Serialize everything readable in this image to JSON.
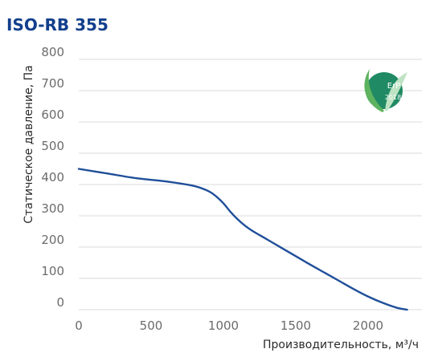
{
  "chart_data": {
    "type": "line",
    "title": "ISO-RB 355",
    "xlabel": "Производительность, м³/ч",
    "ylabel": "Статическое давление, Па",
    "xlim": [
      0,
      2300
    ],
    "ylim": [
      0,
      800
    ],
    "x_ticks": [
      "0",
      "500",
      "1000",
      "1500",
      "2000"
    ],
    "y_ticks": [
      "0",
      "100",
      "200",
      "300",
      "400",
      "500",
      "600",
      "700",
      "800"
    ],
    "grid": true,
    "series": [
      {
        "color": "#1f4e99",
        "x": [
          0,
          200,
          400,
          600,
          800,
          900,
          950,
          1000,
          1050,
          1100,
          1150,
          1200,
          1300,
          1400,
          1500,
          1600,
          1700,
          1800,
          1900,
          2000,
          2100,
          2200,
          2270
        ],
        "y": [
          450,
          435,
          420,
          410,
          395,
          378,
          362,
          340,
          312,
          288,
          268,
          252,
          225,
          198,
          171,
          144,
          118,
          92,
          66,
          42,
          22,
          6,
          0
        ]
      }
    ]
  },
  "badge": {
    "label": "ErP",
    "year": "2018",
    "color": "#1f8a63"
  }
}
